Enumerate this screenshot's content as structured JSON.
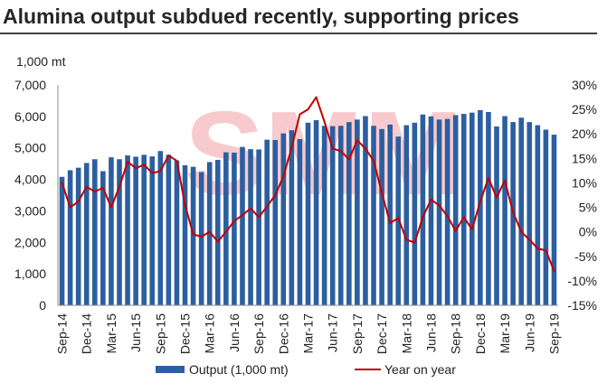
{
  "watermark": "SMM",
  "chart_data": {
    "type": "bar",
    "title": "Alumina output subdued recently, supporting prices",
    "ylabel": "1,000 mt",
    "ylim": [
      0,
      7000
    ],
    "y_ticks": [
      "0",
      "1,000",
      "2,000",
      "3,000",
      "4,000",
      "5,000",
      "6,000",
      "7,000"
    ],
    "y2lim": [
      -15,
      30
    ],
    "y2_ticks": [
      "-15%",
      "-10%",
      "-5%",
      "0%",
      "5%",
      "10%",
      "15%",
      "20%",
      "25%",
      "30%"
    ],
    "grid": false,
    "legend": "bottom",
    "categories": [
      "Sep-14",
      "Oct-14",
      "Nov-14",
      "Dec-14",
      "Jan-15",
      "Feb-15",
      "Mar-15",
      "Apr-15",
      "May-15",
      "Jun-15",
      "Jul-15",
      "Aug-15",
      "Sep-15",
      "Oct-15",
      "Nov-15",
      "Dec-15",
      "Jan-16",
      "Feb-16",
      "Mar-16",
      "Apr-16",
      "May-16",
      "Jun-16",
      "Jul-16",
      "Aug-16",
      "Sep-16",
      "Oct-16",
      "Nov-16",
      "Dec-16",
      "Jan-17",
      "Feb-17",
      "Mar-17",
      "Apr-17",
      "May-17",
      "Jun-17",
      "Jul-17",
      "Aug-17",
      "Sep-17",
      "Oct-17",
      "Nov-17",
      "Dec-17",
      "Jan-18",
      "Feb-18",
      "Mar-18",
      "Apr-18",
      "May-18",
      "Jun-18",
      "Jul-18",
      "Aug-18",
      "Sep-18",
      "Oct-18",
      "Nov-18",
      "Dec-18",
      "Jan-19",
      "Feb-19",
      "Mar-19",
      "Apr-19",
      "May-19",
      "Jun-19",
      "Jul-19",
      "Aug-19",
      "Sep-19"
    ],
    "series": [
      {
        "name": "Output (1,000 mt)",
        "type": "bar",
        "axis": "left",
        "color": "#2c5fa0",
        "values": [
          4080,
          4290,
          4370,
          4520,
          4640,
          4260,
          4700,
          4640,
          4760,
          4720,
          4780,
          4730,
          4900,
          4780,
          4600,
          4450,
          4400,
          4230,
          4550,
          4620,
          4860,
          4850,
          5030,
          4960,
          4950,
          5260,
          5250,
          5460,
          5560,
          5280,
          5800,
          5880,
          5700,
          5690,
          5700,
          5820,
          5900,
          6010,
          5700,
          5600,
          5740,
          5360,
          5720,
          5800,
          6060,
          6000,
          5900,
          5920,
          6040,
          6080,
          6120,
          6200,
          6140,
          5680,
          6010,
          5820,
          5960,
          5820,
          5720,
          5580,
          5420
        ]
      },
      {
        "name": "Year on year",
        "type": "line",
        "axis": "right",
        "unit": "%",
        "color": "#c00000",
        "values": [
          10.0,
          5.0,
          6.2,
          9.2,
          8.2,
          9.0,
          5.0,
          9.2,
          14.3,
          13.0,
          13.7,
          12.0,
          12.4,
          15.6,
          14.5,
          5.5,
          -0.5,
          -1.0,
          0.0,
          -2.0,
          0.0,
          2.2,
          3.4,
          4.8,
          3.0,
          5.2,
          7.5,
          11.3,
          17.2,
          24.0,
          25.0,
          27.5,
          22.5,
          17.0,
          16.5,
          14.8,
          18.7,
          17.0,
          14.5,
          8.0,
          1.8,
          2.8,
          -1.6,
          -2.2,
          3.0,
          6.6,
          5.4,
          3.2,
          0.2,
          3.0,
          0.5,
          6.2,
          11.0,
          7.0,
          10.5,
          4.0,
          0.0,
          -1.6,
          -3.4,
          -3.8,
          -8.0
        ]
      }
    ]
  }
}
